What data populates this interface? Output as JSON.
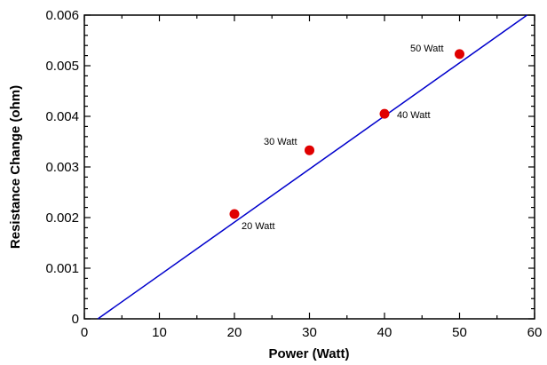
{
  "chart_data": {
    "type": "scatter",
    "title": "",
    "xlabel": "Power (Watt)",
    "ylabel": "Resistance Change (ohm)",
    "xlim": [
      0,
      60
    ],
    "ylim": [
      0,
      0.006
    ],
    "x_ticks": [
      0,
      10,
      20,
      30,
      40,
      50,
      60
    ],
    "x_tick_labels": [
      "0",
      "10",
      "20",
      "30",
      "40",
      "50",
      "60"
    ],
    "y_ticks": [
      0,
      0.001,
      0.002,
      0.003,
      0.004,
      0.005,
      0.006
    ],
    "y_tick_labels": [
      "0",
      "0.001",
      "0.002",
      "0.003",
      "0.004",
      "0.005",
      "0.006"
    ],
    "grid": false,
    "series": [
      {
        "points": [
          {
            "x": 20,
            "y": 0.00207,
            "label": "20 Watt"
          },
          {
            "x": 30,
            "y": 0.00333,
            "label": "30 Watt"
          },
          {
            "x": 40,
            "y": 0.00405,
            "label": "40 Watt"
          },
          {
            "x": 50,
            "y": 0.00523,
            "label": "50 Watt"
          }
        ],
        "color": "#e00000"
      }
    ],
    "fit_line": {
      "x": [
        1.8,
        59
      ],
      "y": [
        0,
        0.006
      ],
      "color": "#0000cc"
    }
  }
}
